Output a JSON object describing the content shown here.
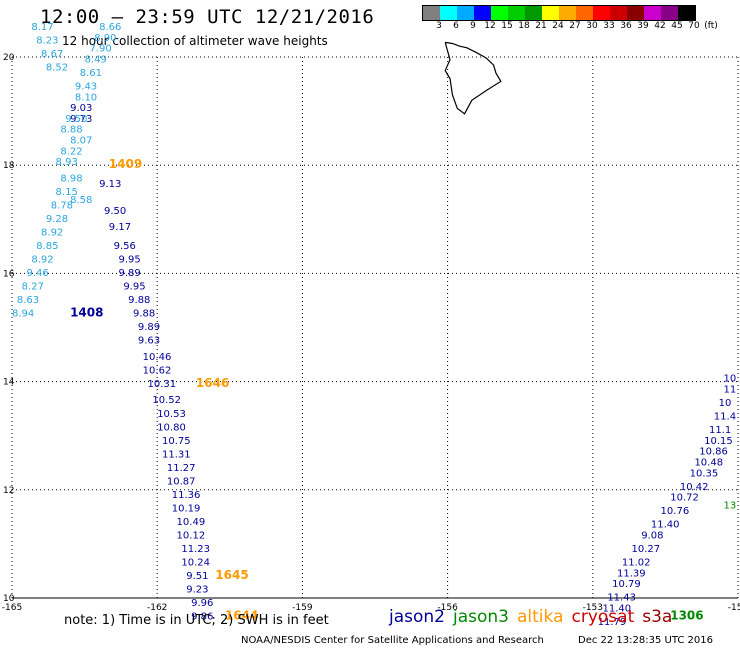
{
  "header": {
    "title": "12:00 – 23:59 UTC 12/21/2016",
    "subtitle": "12 hour collection of altimeter wave heights"
  },
  "color_scale": {
    "colors": [
      "#808080",
      "#00ffff",
      "#00aaff",
      "#0000ff",
      "#00ff00",
      "#00cc00",
      "#009900",
      "#ffff00",
      "#ffaa00",
      "#ff6600",
      "#ff0000",
      "#cc0000",
      "#880000",
      "#cc00cc",
      "#880088",
      "#000000"
    ],
    "labels": [
      "3",
      "6",
      "9",
      "12",
      "15",
      "18",
      "21",
      "24",
      "27",
      "30",
      "33",
      "36",
      "39",
      "42",
      "45",
      "70",
      "(ft)"
    ]
  },
  "chart_data": {
    "type": "scatter",
    "xlim": [
      -165,
      -150
    ],
    "ylim": [
      10,
      20
    ],
    "x_ticks": [
      "-165",
      "-162",
      "-159",
      "-156",
      "-153",
      "-150"
    ],
    "y_ticks": [
      "20",
      "18",
      "16",
      "14",
      "12",
      "10"
    ],
    "grid": true,
    "series": [
      {
        "name": "jason2",
        "color": "#000099",
        "points": [
          {
            "x": -163.8,
            "y": 19.0,
            "label": "9.03"
          },
          {
            "x": -163.8,
            "y": 18.8,
            "label": "9.73"
          },
          {
            "x": -163.2,
            "y": 17.6,
            "label": "9.13"
          },
          {
            "x": -163.1,
            "y": 17.1,
            "label": "9.50"
          },
          {
            "x": -163.0,
            "y": 16.8,
            "label": "9.17"
          },
          {
            "x": -162.9,
            "y": 16.45,
            "label": "9.56"
          },
          {
            "x": -162.8,
            "y": 16.2,
            "label": "9.95"
          },
          {
            "x": -162.8,
            "y": 15.95,
            "label": "9.89"
          },
          {
            "x": -162.7,
            "y": 15.7,
            "label": "9.95"
          },
          {
            "x": -162.6,
            "y": 15.45,
            "label": "9.88"
          },
          {
            "x": -162.5,
            "y": 15.2,
            "label": "9.88"
          },
          {
            "x": -162.4,
            "y": 14.95,
            "label": "9.89"
          },
          {
            "x": -162.4,
            "y": 14.7,
            "label": "9.63"
          },
          {
            "x": -162.3,
            "y": 14.4,
            "label": "10.46"
          },
          {
            "x": -162.3,
            "y": 14.15,
            "label": "10.62"
          },
          {
            "x": -162.2,
            "y": 13.9,
            "label": "10.31"
          },
          {
            "x": -162.1,
            "y": 13.6,
            "label": "10.52"
          },
          {
            "x": -162.0,
            "y": 13.35,
            "label": "10.53"
          },
          {
            "x": -162.0,
            "y": 13.1,
            "label": "10.80"
          },
          {
            "x": -161.9,
            "y": 12.85,
            "label": "10.75"
          },
          {
            "x": -161.9,
            "y": 12.6,
            "label": "11.31"
          },
          {
            "x": -161.8,
            "y": 12.35,
            "label": "11.27"
          },
          {
            "x": -161.8,
            "y": 12.1,
            "label": "10.87"
          },
          {
            "x": -161.7,
            "y": 11.85,
            "label": "11.36"
          },
          {
            "x": -161.7,
            "y": 11.6,
            "label": "10.19"
          },
          {
            "x": -161.6,
            "y": 11.35,
            "label": "10.49"
          },
          {
            "x": -161.6,
            "y": 11.1,
            "label": "10.12"
          },
          {
            "x": -161.5,
            "y": 10.85,
            "label": "11.23"
          },
          {
            "x": -161.5,
            "y": 10.6,
            "label": "10.24"
          },
          {
            "x": -161.4,
            "y": 10.35,
            "label": "9.51"
          },
          {
            "x": -161.4,
            "y": 10.1,
            "label": "9.23"
          },
          {
            "x": -161.3,
            "y": 9.85,
            "label": "9.96"
          },
          {
            "x": -161.3,
            "y": 9.6,
            "label": "9.86"
          },
          {
            "x": -150.3,
            "y": 14.0,
            "label": "10"
          },
          {
            "x": -150.3,
            "y": 13.8,
            "label": "11"
          },
          {
            "x": -150.4,
            "y": 13.55,
            "label": "10"
          },
          {
            "x": -150.5,
            "y": 13.3,
            "label": "11.4"
          },
          {
            "x": -150.6,
            "y": 13.05,
            "label": "11.1"
          },
          {
            "x": -150.7,
            "y": 12.85,
            "label": "10.15"
          },
          {
            "x": -150.8,
            "y": 12.65,
            "label": "10.86"
          },
          {
            "x": -150.9,
            "y": 12.45,
            "label": "10.48"
          },
          {
            "x": -151.0,
            "y": 12.25,
            "label": "10.35"
          },
          {
            "x": -151.2,
            "y": 12.0,
            "label": "10.42"
          },
          {
            "x": -151.4,
            "y": 11.8,
            "label": "10.72"
          },
          {
            "x": -151.6,
            "y": 11.55,
            "label": "10.76"
          },
          {
            "x": -151.8,
            "y": 11.3,
            "label": "11.40"
          },
          {
            "x": -152.0,
            "y": 11.1,
            "label": "9.08"
          },
          {
            "x": -152.2,
            "y": 10.85,
            "label": "10.27"
          },
          {
            "x": -152.4,
            "y": 10.6,
            "label": "11.02"
          },
          {
            "x": -152.5,
            "y": 10.4,
            "label": "11.39"
          },
          {
            "x": -152.6,
            "y": 10.2,
            "label": "10.79"
          },
          {
            "x": -152.7,
            "y": 9.95,
            "label": "11.43"
          },
          {
            "x": -152.8,
            "y": 9.75,
            "label": "11.40"
          },
          {
            "x": -152.9,
            "y": 9.5,
            "label": "11.79"
          }
        ]
      },
      {
        "name": "jason3",
        "color": "#008800",
        "points": [
          {
            "x": -150.3,
            "y": 11.65,
            "label": "13"
          }
        ]
      },
      {
        "name": "altika",
        "color": "#ff9900",
        "points": []
      },
      {
        "name": "cryosat",
        "color": "#cc0000",
        "points": []
      },
      {
        "name": "s3a",
        "color": "#990000",
        "points": []
      },
      {
        "name": "",
        "color": "#2aa6e0",
        "points": [
          {
            "x": -164.6,
            "y": 20.5,
            "label": "8.17"
          },
          {
            "x": -164.5,
            "y": 20.25,
            "label": "8.23"
          },
          {
            "x": -164.4,
            "y": 20.0,
            "label": "8.67"
          },
          {
            "x": -164.3,
            "y": 19.75,
            "label": "8.52"
          },
          {
            "x": -163.2,
            "y": 20.5,
            "label": "8.66"
          },
          {
            "x": -163.3,
            "y": 20.3,
            "label": "8.90"
          },
          {
            "x": -163.4,
            "y": 20.1,
            "label": "7.90"
          },
          {
            "x": -163.5,
            "y": 19.9,
            "label": "8.49"
          },
          {
            "x": -163.6,
            "y": 19.65,
            "label": "8.61"
          },
          {
            "x": -163.7,
            "y": 19.4,
            "label": "9.43"
          },
          {
            "x": -163.7,
            "y": 19.2,
            "label": "8.10"
          },
          {
            "x": -163.9,
            "y": 18.8,
            "label": "9.50"
          },
          {
            "x": -164.0,
            "y": 18.6,
            "label": "8.88"
          },
          {
            "x": -163.8,
            "y": 18.4,
            "label": "8.07"
          },
          {
            "x": -164.0,
            "y": 18.2,
            "label": "8.22"
          },
          {
            "x": -164.1,
            "y": 18.0,
            "label": "8.93"
          },
          {
            "x": -164.0,
            "y": 17.7,
            "label": "8.98"
          },
          {
            "x": -164.1,
            "y": 17.45,
            "label": "8.15"
          },
          {
            "x": -163.8,
            "y": 17.3,
            "label": "8.58"
          },
          {
            "x": -164.2,
            "y": 17.2,
            "label": "8.78"
          },
          {
            "x": -164.3,
            "y": 16.95,
            "label": "9.28"
          },
          {
            "x": -164.4,
            "y": 16.7,
            "label": "8.92"
          },
          {
            "x": -164.5,
            "y": 16.45,
            "label": "8.85"
          },
          {
            "x": -164.6,
            "y": 16.2,
            "label": "8.92"
          },
          {
            "x": -164.7,
            "y": 15.95,
            "label": "9.46"
          },
          {
            "x": -164.8,
            "y": 15.7,
            "label": "8.27"
          },
          {
            "x": -164.9,
            "y": 15.45,
            "label": "8.63"
          },
          {
            "x": -165.0,
            "y": 15.2,
            "label": "8.94"
          }
        ]
      },
      {
        "name": "",
        "color": "#000099",
        "time_labels": [
          {
            "x": -163.8,
            "y": 15.2,
            "label": "1408"
          }
        ]
      },
      {
        "name": "",
        "color": "#ff9900",
        "time_labels": [
          {
            "x": -163.0,
            "y": 17.95,
            "label": "1409"
          },
          {
            "x": -161.2,
            "y": 13.9,
            "label": "1646"
          },
          {
            "x": -160.8,
            "y": 10.35,
            "label": "1645"
          },
          {
            "x": -160.6,
            "y": 9.6,
            "label": "1644"
          }
        ]
      },
      {
        "name": "",
        "color": "#008800",
        "time_labels": [
          {
            "x": -151.4,
            "y": 9.6,
            "label": "1306"
          }
        ]
      }
    ]
  },
  "footer": {
    "note": "note:  1) Time is in UTC;  2) SWH is in feet",
    "legend": [
      {
        "label": "jason2",
        "color": "#000099"
      },
      {
        "label": "jason3",
        "color": "#008800"
      },
      {
        "label": "altika",
        "color": "#ff9900"
      },
      {
        "label": "cryosat",
        "color": "#cc0000"
      },
      {
        "label": "s3a",
        "color": "#990000"
      }
    ],
    "credit": "NOAA/NESDIS Center for Satellite Applications and Research",
    "timestamp": "Dec 22 13:28:35 UTC 2016"
  }
}
